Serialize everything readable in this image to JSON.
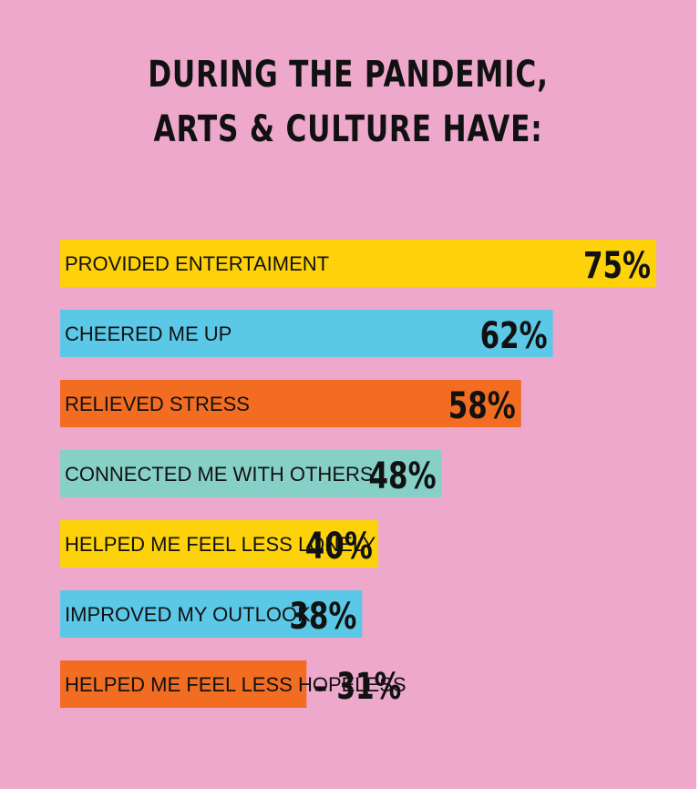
{
  "chart_data": {
    "type": "bar",
    "orientation": "horizontal",
    "title_lines": [
      "DURING THE PANDEMIC,",
      "ARTS & CULTURE HAVE:"
    ],
    "categories": [
      "PROVIDED ENTERTAIMENT",
      "CHEERED ME UP",
      "RELIEVED STRESS",
      "CONNECTED ME WITH OTHERS",
      "HELPED ME FEEL LESS LONELY",
      "IMPROVED MY OUTLOOK",
      "HELPED ME FEEL LESS HOPELESS"
    ],
    "values": [
      75,
      62,
      58,
      48,
      40,
      38,
      31
    ],
    "value_labels": [
      "75%",
      "62%",
      "58%",
      "48%",
      "40%",
      "38%",
      "– 31%"
    ],
    "bar_colors": [
      "#fdd20a",
      "#5bc8e8",
      "#f26d21",
      "#86d0c8",
      "#fdd20a",
      "#5bc8e8",
      "#f26d21"
    ],
    "background_color": "#eea8cc",
    "xlim": [
      0,
      100
    ],
    "grid": false,
    "legend": "none"
  }
}
